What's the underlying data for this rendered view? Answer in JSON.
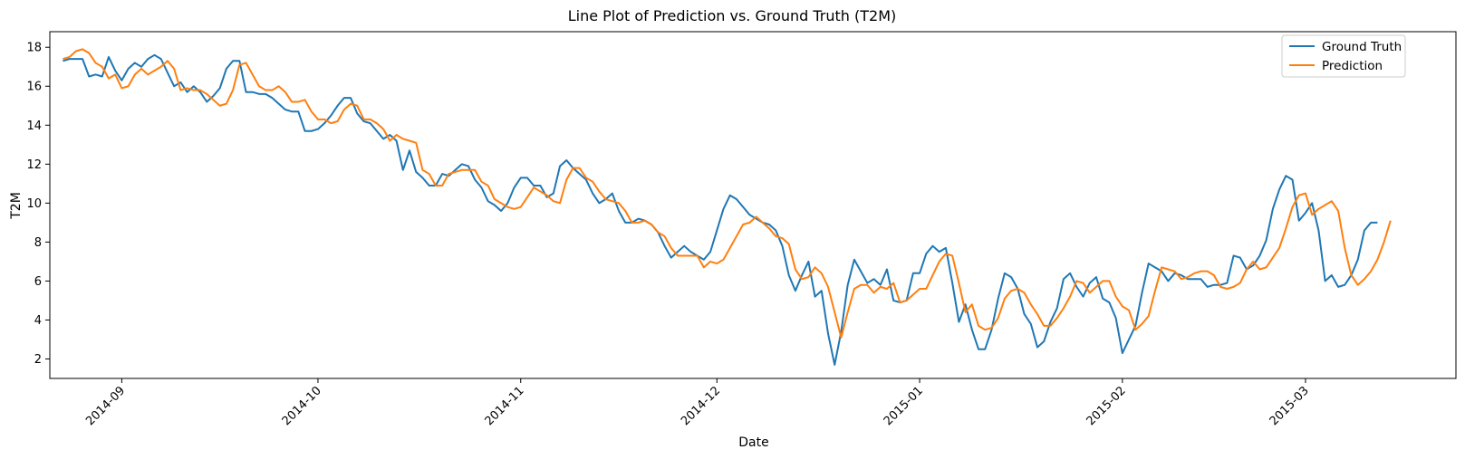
{
  "chart_data": {
    "type": "line",
    "title": "Line Plot of Prediction vs. Ground Truth (T2M)",
    "xlabel": "Date",
    "ylabel": "T2M",
    "ylim": [
      1,
      18.8
    ],
    "yticks": [
      2,
      4,
      6,
      8,
      10,
      12,
      14,
      16,
      18
    ],
    "xlim_days": [
      -11.0,
      204.0
    ],
    "xticks": [
      {
        "label": "2014-09",
        "day": 0
      },
      {
        "label": "2014-10",
        "day": 30
      },
      {
        "label": "2014-11",
        "day": 61
      },
      {
        "label": "2014-12",
        "day": 91
      },
      {
        "label": "2015-01",
        "day": 122
      },
      {
        "label": "2015-02",
        "day": 153
      },
      {
        "label": "2015-03",
        "day": 181
      }
    ],
    "legend_position": "top-right",
    "start_day": -9,
    "series": [
      {
        "name": "Ground Truth",
        "color": "#1f77b4",
        "values": [
          17.3,
          17.4,
          17.4,
          17.4,
          16.5,
          16.6,
          16.5,
          17.5,
          16.8,
          16.3,
          16.9,
          17.2,
          17.0,
          17.4,
          17.6,
          17.4,
          16.7,
          16.0,
          16.2,
          15.7,
          16.0,
          15.7,
          15.2,
          15.5,
          15.9,
          16.9,
          17.3,
          17.3,
          15.7,
          15.7,
          15.6,
          15.6,
          15.4,
          15.1,
          14.8,
          14.7,
          14.7,
          13.7,
          13.7,
          13.8,
          14.1,
          14.5,
          15.0,
          15.4,
          15.4,
          14.6,
          14.2,
          14.1,
          13.7,
          13.3,
          13.5,
          13.2,
          11.7,
          12.7,
          11.6,
          11.3,
          10.9,
          10.9,
          11.5,
          11.4,
          11.7,
          12.0,
          11.9,
          11.2,
          10.8,
          10.1,
          9.9,
          9.6,
          10.0,
          10.8,
          11.3,
          11.3,
          10.9,
          10.9,
          10.3,
          10.5,
          11.9,
          12.2,
          11.8,
          11.5,
          11.2,
          10.5,
          10.0,
          10.2,
          10.5,
          9.6,
          9.0,
          9.0,
          9.2,
          9.1,
          8.9,
          8.5,
          7.8,
          7.2,
          7.5,
          7.8,
          7.5,
          7.3,
          7.1,
          7.5,
          8.6,
          9.7,
          10.4,
          10.2,
          9.8,
          9.4,
          9.2,
          9.0,
          8.9,
          8.6,
          7.8,
          6.3,
          5.5,
          6.3,
          7.0,
          5.2,
          5.5,
          3.3,
          1.7,
          3.4,
          5.8,
          7.1,
          6.5,
          5.9,
          6.1,
          5.8,
          6.6,
          5.0,
          4.9,
          5.0,
          6.4,
          6.4,
          7.4,
          7.8,
          7.5,
          7.7,
          5.9,
          3.9,
          4.8,
          3.5,
          2.5,
          2.5,
          3.5,
          5.1,
          6.4,
          6.2,
          5.6,
          4.3,
          3.8,
          2.6,
          2.9,
          3.9,
          4.6,
          6.1,
          6.4,
          5.7,
          5.2,
          5.9,
          6.2,
          5.1,
          4.9,
          4.1,
          2.3,
          3.0,
          3.7,
          5.4,
          6.9,
          6.7,
          6.5,
          6.0,
          6.4,
          6.3,
          6.1,
          6.1,
          6.1,
          5.7,
          5.8,
          5.8,
          5.9,
          7.3,
          7.2,
          6.6,
          6.8,
          7.3,
          8.1,
          9.7,
          10.7,
          11.4,
          11.2,
          9.1,
          9.5,
          10.0,
          8.6,
          6.0,
          6.3,
          5.7,
          5.8,
          6.3,
          7.1,
          8.6,
          9.0,
          9.0
        ]
      },
      {
        "name": "Prediction",
        "color": "#ff7f0e",
        "values": [
          17.4,
          17.5,
          17.8,
          17.9,
          17.7,
          17.2,
          17.0,
          16.4,
          16.6,
          15.9,
          16.0,
          16.6,
          16.9,
          16.6,
          16.8,
          17.0,
          17.3,
          16.9,
          15.8,
          15.9,
          15.8,
          15.8,
          15.6,
          15.3,
          15.0,
          15.1,
          15.8,
          17.1,
          17.2,
          16.6,
          16.0,
          15.8,
          15.8,
          16.0,
          15.7,
          15.2,
          15.2,
          15.3,
          14.7,
          14.3,
          14.3,
          14.1,
          14.2,
          14.8,
          15.1,
          15.0,
          14.3,
          14.3,
          14.1,
          13.8,
          13.2,
          13.5,
          13.3,
          13.2,
          13.1,
          11.7,
          11.5,
          10.9,
          10.9,
          11.5,
          11.6,
          11.7,
          11.7,
          11.7,
          11.1,
          10.9,
          10.2,
          10.0,
          9.8,
          9.7,
          9.8,
          10.3,
          10.8,
          10.6,
          10.4,
          10.1,
          10.0,
          11.2,
          11.8,
          11.8,
          11.3,
          11.1,
          10.6,
          10.2,
          10.1,
          10.0,
          9.6,
          9.0,
          9.0,
          9.1,
          8.9,
          8.5,
          8.3,
          7.7,
          7.3,
          7.3,
          7.3,
          7.3,
          6.7,
          7.0,
          6.9,
          7.1,
          7.7,
          8.3,
          8.9,
          9.0,
          9.3,
          9.0,
          8.7,
          8.3,
          8.2,
          7.9,
          6.6,
          6.1,
          6.2,
          6.7,
          6.4,
          5.7,
          4.4,
          3.1,
          4.4,
          5.6,
          5.8,
          5.8,
          5.4,
          5.7,
          5.6,
          5.9,
          4.9,
          5.0,
          5.3,
          5.6,
          5.6,
          6.3,
          7.0,
          7.4,
          7.3,
          5.9,
          4.4,
          4.8,
          3.7,
          3.5,
          3.6,
          4.1,
          5.1,
          5.5,
          5.6,
          5.4,
          4.8,
          4.3,
          3.7,
          3.7,
          4.1,
          4.6,
          5.2,
          6.0,
          5.9,
          5.4,
          5.7,
          6.0,
          6.0,
          5.2,
          4.7,
          4.5,
          3.5,
          3.8,
          4.2,
          5.5,
          6.7,
          6.6,
          6.5,
          6.1,
          6.2,
          6.4,
          6.5,
          6.5,
          6.3,
          5.7,
          5.6,
          5.7,
          5.9,
          6.6,
          7.0,
          6.6,
          6.7,
          7.2,
          7.7,
          8.7,
          9.8,
          10.4,
          10.5,
          9.4,
          9.7,
          9.9,
          10.1,
          9.6,
          7.7,
          6.3,
          5.8,
          6.1,
          6.5,
          7.1,
          8.0,
          9.1
        ]
      }
    ]
  }
}
